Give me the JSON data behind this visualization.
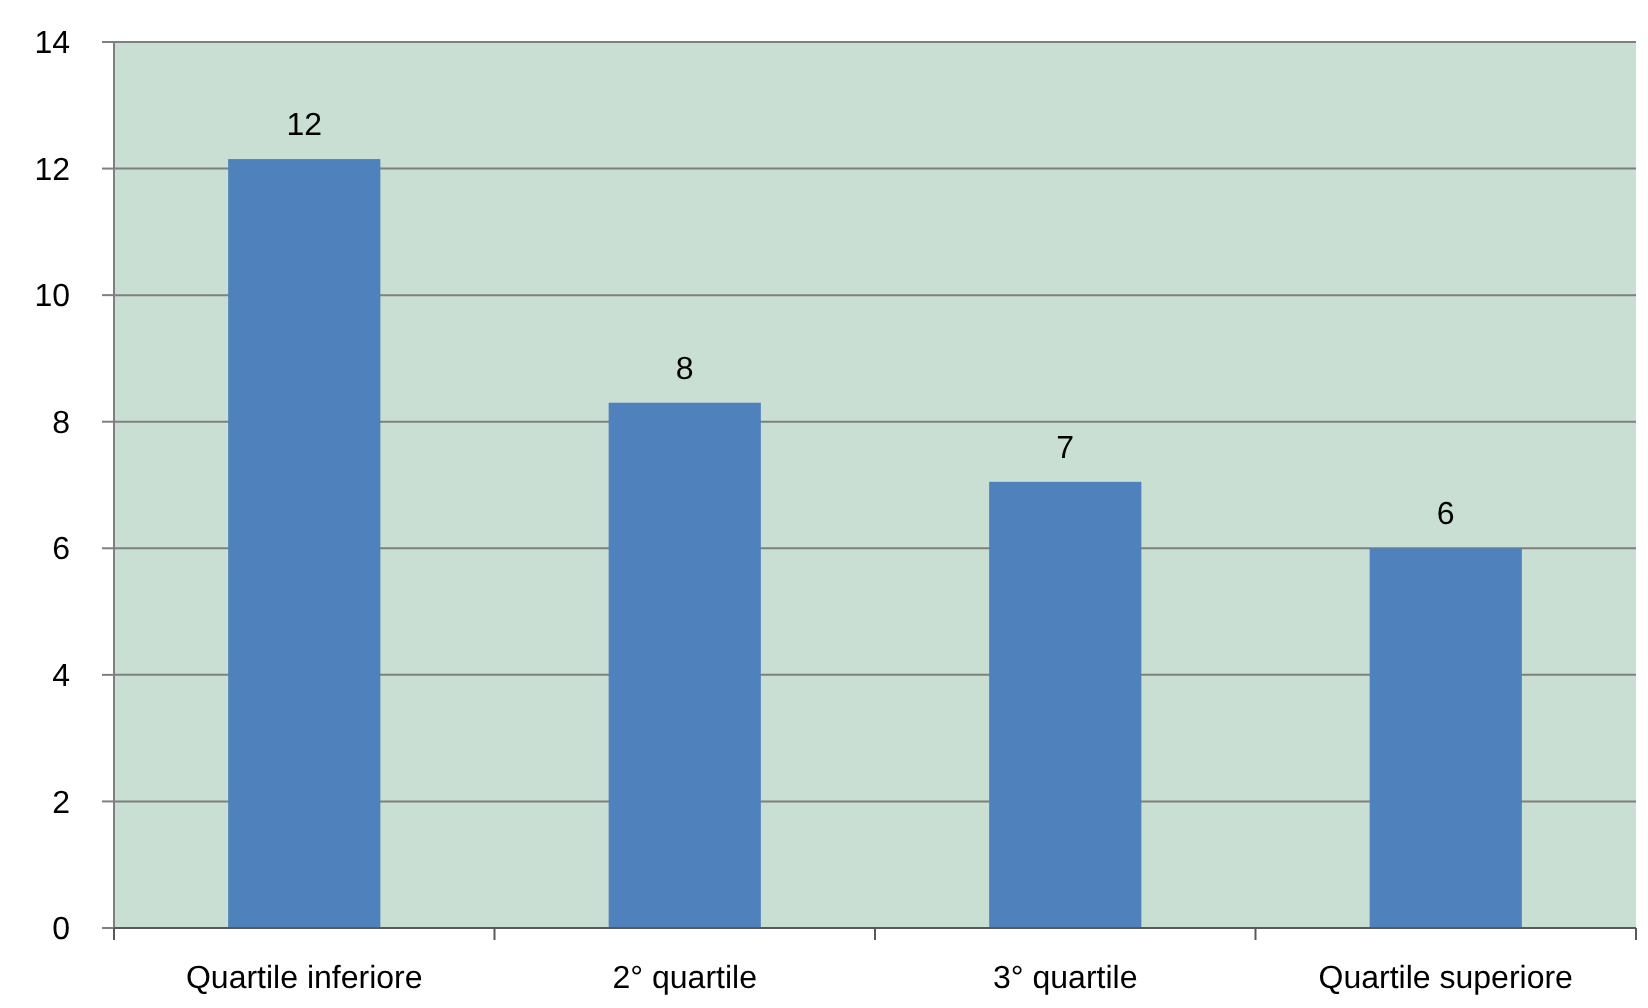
{
  "chart_data": {
    "type": "bar",
    "categories": [
      "Quartile inferiore",
      "2° quartile",
      "3° quartile",
      "Quartile superiore"
    ],
    "values": [
      12.15,
      8.3,
      7.05,
      6
    ],
    "value_labels": [
      "12",
      "8",
      "7",
      "6"
    ],
    "color": "#4f81bd",
    "ylim": [
      0,
      14
    ],
    "yticks": [
      0,
      2,
      4,
      6,
      8,
      10,
      12,
      14
    ],
    "grid": "y"
  }
}
